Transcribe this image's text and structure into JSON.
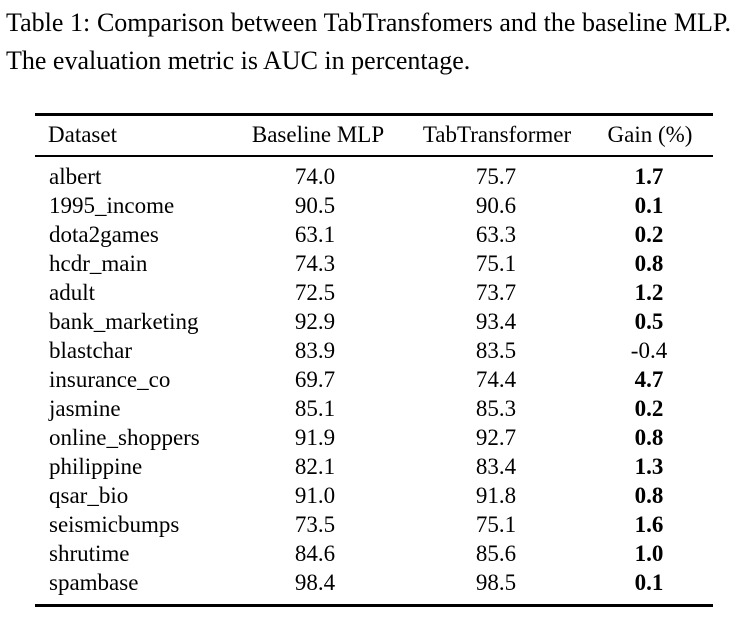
{
  "caption": "Table 1: Comparison between TabTransfomers and the baseline MLP. The evaluation metric is AUC in percentage.",
  "table": {
    "headers": [
      "Dataset",
      "Baseline MLP",
      "TabTransformer",
      "Gain (%)"
    ],
    "rows": [
      {
        "dataset": "albert",
        "baseline": "74.0",
        "tab": "75.7",
        "gain": "1.7",
        "gain_bold": true
      },
      {
        "dataset": "1995_income",
        "baseline": "90.5",
        "tab": "90.6",
        "gain": "0.1",
        "gain_bold": true
      },
      {
        "dataset": "dota2games",
        "baseline": "63.1",
        "tab": "63.3",
        "gain": "0.2",
        "gain_bold": true
      },
      {
        "dataset": "hcdr_main",
        "baseline": "74.3",
        "tab": "75.1",
        "gain": "0.8",
        "gain_bold": true
      },
      {
        "dataset": "adult",
        "baseline": "72.5",
        "tab": "73.7",
        "gain": "1.2",
        "gain_bold": true
      },
      {
        "dataset": "bank_marketing",
        "baseline": "92.9",
        "tab": "93.4",
        "gain": "0.5",
        "gain_bold": true
      },
      {
        "dataset": "blastchar",
        "baseline": "83.9",
        "tab": "83.5",
        "gain": "-0.4",
        "gain_bold": false
      },
      {
        "dataset": "insurance_co",
        "baseline": "69.7",
        "tab": "74.4",
        "gain": "4.7",
        "gain_bold": true
      },
      {
        "dataset": "jasmine",
        "baseline": "85.1",
        "tab": "85.3",
        "gain": "0.2",
        "gain_bold": true
      },
      {
        "dataset": "online_shoppers",
        "baseline": "91.9",
        "tab": "92.7",
        "gain": "0.8",
        "gain_bold": true
      },
      {
        "dataset": "philippine",
        "baseline": "82.1",
        "tab": "83.4",
        "gain": "1.3",
        "gain_bold": true
      },
      {
        "dataset": "qsar_bio",
        "baseline": "91.0",
        "tab": "91.8",
        "gain": "0.8",
        "gain_bold": true
      },
      {
        "dataset": "seismicbumps",
        "baseline": "73.5",
        "tab": "75.1",
        "gain": "1.6",
        "gain_bold": true
      },
      {
        "dataset": "shrutime",
        "baseline": "84.6",
        "tab": "85.6",
        "gain": "1.0",
        "gain_bold": true
      },
      {
        "dataset": "spambase",
        "baseline": "98.4",
        "tab": "98.5",
        "gain": "0.1",
        "gain_bold": true
      }
    ]
  }
}
